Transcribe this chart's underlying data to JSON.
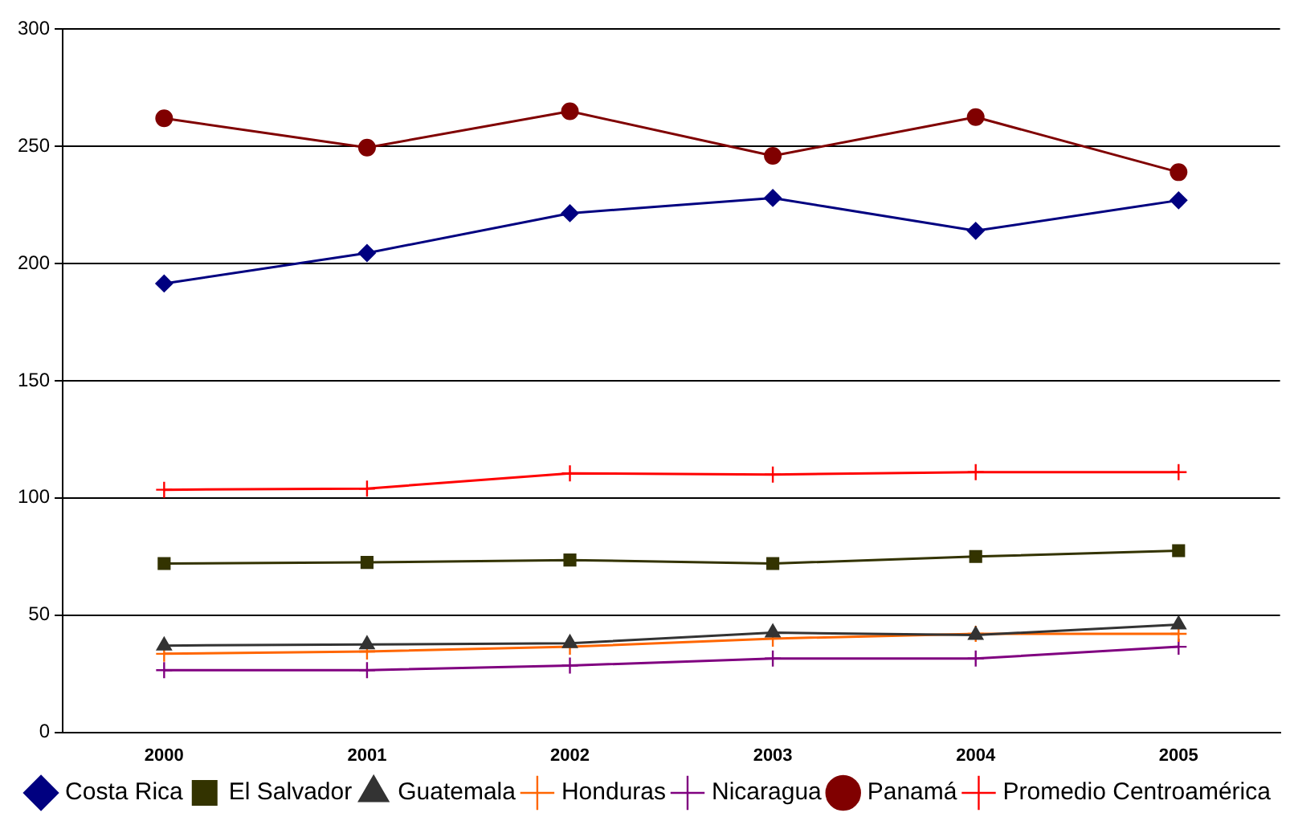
{
  "chart_data": {
    "type": "line",
    "categories": [
      "2000",
      "2001",
      "2002",
      "2003",
      "2004",
      "2005"
    ],
    "ylim": [
      0,
      300
    ],
    "yticks": [
      0,
      50,
      100,
      150,
      200,
      250,
      300
    ],
    "grid": "y",
    "legend": "bottom",
    "series": [
      {
        "name": "Costa Rica",
        "color": "#000080",
        "marker": "diamond",
        "values": [
          191.5,
          204.5,
          221.5,
          228,
          214,
          227
        ]
      },
      {
        "name": "El Salvador",
        "color": "#333300",
        "marker": "square",
        "values": [
          72,
          72.5,
          73.5,
          72,
          75,
          77.5
        ]
      },
      {
        "name": "Guatemala",
        "color": "#333333",
        "marker": "triangle",
        "values": [
          37,
          37.5,
          38,
          42.5,
          41.5,
          46
        ]
      },
      {
        "name": "Honduras",
        "color": "#ff6600",
        "marker": "cross",
        "values": [
          33.5,
          34.5,
          36.5,
          40,
          42,
          42
        ]
      },
      {
        "name": "Nicaragua",
        "color": "#800080",
        "marker": "cross",
        "values": [
          26.5,
          26.5,
          28.5,
          31.5,
          31.5,
          36.5
        ]
      },
      {
        "name": "Panamá",
        "color": "#800000",
        "marker": "circle",
        "values": [
          262,
          249.5,
          265,
          246,
          262.5,
          239
        ]
      },
      {
        "name": "Promedio Centroamérica",
        "color": "#ff0000",
        "marker": "cross",
        "values": [
          103.5,
          104,
          110.5,
          110,
          111,
          111
        ]
      }
    ]
  }
}
